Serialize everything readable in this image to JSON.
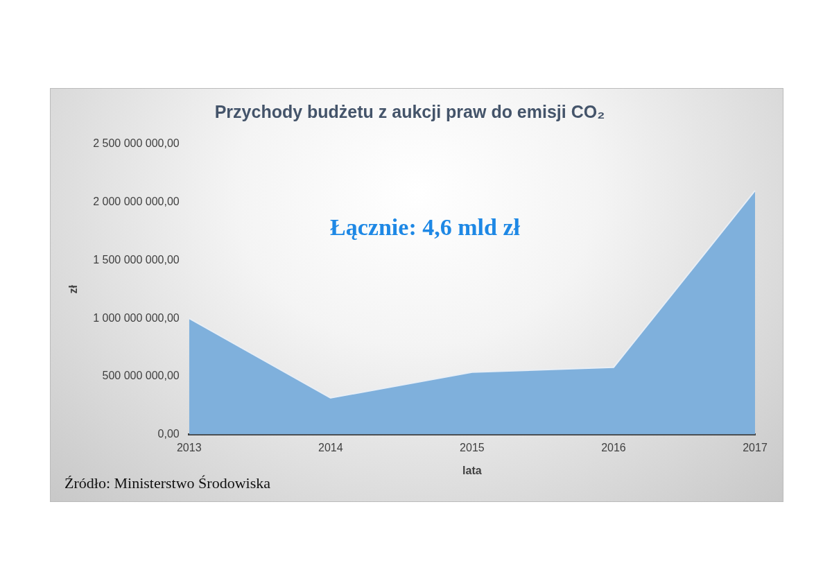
{
  "chart_data": {
    "type": "area",
    "title": "Przychody budżetu z aukcji praw do emisji CO₂",
    "xlabel": "lata",
    "ylabel": "zł",
    "categories": [
      "2013",
      "2014",
      "2015",
      "2016",
      "2017"
    ],
    "series": [
      {
        "color": "#7fb0dc",
        "values": [
          1000000000,
          315000000,
          537000000,
          578000000,
          2100000000
        ]
      }
    ],
    "ylim": [
      0,
      2500000000
    ],
    "yticks": [
      {
        "value": 0,
        "label": "0,00"
      },
      {
        "value": 500000000,
        "label": "500 000 000,00"
      },
      {
        "value": 1000000000,
        "label": "1 000 000 000,00"
      },
      {
        "value": 1500000000,
        "label": "1 500 000 000,00"
      },
      {
        "value": 2000000000,
        "label": "2 000 000 000,00"
      },
      {
        "value": 2500000000,
        "label": "2 500 000 000,00"
      }
    ],
    "grid": false,
    "legend": false,
    "annotations": [
      "Łącznie: 4,6 mld zł",
      "Źródło: Ministerstwo Środowiska"
    ]
  }
}
